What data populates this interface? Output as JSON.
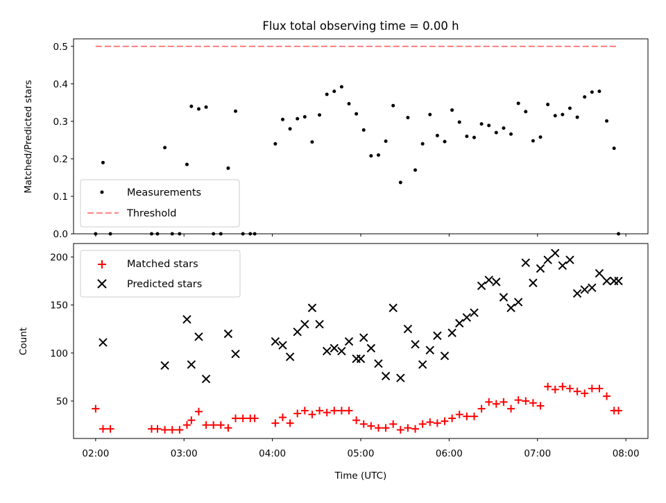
{
  "title": "Flux total observing time = 0.00 h",
  "chart_data": [
    {
      "type": "scatter",
      "ylabel": "Matched/Predicted stars",
      "ylim": [
        0,
        0.52
      ],
      "yticks": [
        "0.0",
        "0.1",
        "0.2",
        "0.3",
        "0.4",
        "0.5"
      ],
      "threshold": 0.5,
      "legend": {
        "position": "lower-left",
        "entries": [
          "Measurements",
          "Threshold"
        ]
      },
      "series": [
        {
          "name": "Measurements",
          "color": "#000000",
          "marker": "dot",
          "x": [
            "02:00",
            "02:05",
            "02:10",
            "02:38",
            "02:42",
            "02:47",
            "02:52",
            "02:57",
            "03:02",
            "03:05",
            "03:10",
            "03:15",
            "03:20",
            "03:25",
            "03:30",
            "03:35",
            "03:40",
            "03:45",
            "03:48",
            "04:02",
            "04:07",
            "04:12",
            "04:17",
            "04:22",
            "04:27",
            "04:32",
            "04:37",
            "04:42",
            "04:47",
            "04:52",
            "04:57",
            "05:02",
            "05:07",
            "05:12",
            "05:17",
            "05:22",
            "05:27",
            "05:32",
            "05:37",
            "05:42",
            "05:47",
            "05:52",
            "05:57",
            "06:02",
            "06:07",
            "06:12",
            "06:17",
            "06:22",
            "06:27",
            "06:32",
            "06:37",
            "06:42",
            "06:47",
            "06:52",
            "06:57",
            "07:02",
            "07:07",
            "07:12",
            "07:17",
            "07:22",
            "07:27",
            "07:32",
            "07:37",
            "07:42",
            "07:47",
            "07:52",
            "07:55"
          ],
          "y": [
            0.0,
            0.19,
            0.0,
            0.0,
            0.0,
            0.23,
            0.0,
            0.0,
            0.185,
            0.34,
            0.333,
            0.338,
            0.0,
            0.0,
            0.175,
            0.327,
            0.0,
            0.0,
            0.0,
            0.24,
            0.305,
            0.28,
            0.307,
            0.312,
            0.245,
            0.317,
            0.372,
            0.38,
            0.392,
            0.347,
            0.32,
            0.277,
            0.208,
            0.21,
            0.247,
            0.342,
            0.137,
            0.31,
            0.17,
            0.24,
            0.318,
            0.262,
            0.246,
            0.33,
            0.298,
            0.26,
            0.257,
            0.293,
            0.289,
            0.27,
            0.282,
            0.266,
            0.348,
            0.326,
            0.248,
            0.258,
            0.345,
            0.315,
            0.318,
            0.335,
            0.311,
            0.365,
            0.378,
            0.38,
            0.301,
            0.228,
            0.0
          ]
        }
      ]
    },
    {
      "type": "scatter",
      "xlabel": "Time (UTC)",
      "ylabel": "Count",
      "ylim": [
        11,
        214
      ],
      "xlim": [
        "01:45",
        "08:15"
      ],
      "yticks": [
        "50",
        "100",
        "150",
        "200"
      ],
      "xticks": [
        "02:00",
        "03:00",
        "04:00",
        "05:00",
        "06:00",
        "07:00",
        "08:00"
      ],
      "legend": {
        "position": "upper-left",
        "entries": [
          "Matched stars",
          "Predicted stars"
        ]
      },
      "series": [
        {
          "name": "Matched stars",
          "color": "#ff0000",
          "marker": "plus",
          "x": [
            "02:00",
            "02:05",
            "02:10",
            "02:38",
            "02:42",
            "02:47",
            "02:52",
            "02:57",
            "03:02",
            "03:05",
            "03:10",
            "03:15",
            "03:20",
            "03:25",
            "03:30",
            "03:35",
            "03:40",
            "03:45",
            "03:48",
            "04:02",
            "04:07",
            "04:12",
            "04:17",
            "04:22",
            "04:27",
            "04:32",
            "04:37",
            "04:42",
            "04:47",
            "04:52",
            "04:57",
            "05:02",
            "05:07",
            "05:12",
            "05:17",
            "05:22",
            "05:27",
            "05:32",
            "05:37",
            "05:42",
            "05:47",
            "05:52",
            "05:57",
            "06:02",
            "06:07",
            "06:12",
            "06:17",
            "06:22",
            "06:27",
            "06:32",
            "06:37",
            "06:42",
            "06:47",
            "06:52",
            "06:57",
            "07:02",
            "07:07",
            "07:12",
            "07:17",
            "07:22",
            "07:27",
            "07:32",
            "07:37",
            "07:42",
            "07:47",
            "07:52",
            "07:55"
          ],
          "y": [
            42,
            21,
            21,
            21,
            21,
            20,
            20,
            20,
            25,
            30,
            39,
            25,
            25,
            25,
            22,
            32,
            32,
            32,
            32,
            27,
            33,
            27,
            37,
            40,
            36,
            40,
            38,
            40,
            40,
            40,
            30,
            26,
            24,
            22,
            22,
            26,
            20,
            22,
            21,
            26,
            28,
            27,
            29,
            32,
            36,
            34,
            34,
            42,
            49,
            47,
            49,
            42,
            51,
            50,
            48,
            45,
            65,
            62,
            65,
            63,
            60,
            58,
            63,
            63,
            55,
            40,
            40
          ]
        },
        {
          "name": "Predicted stars",
          "color": "#000000",
          "marker": "x",
          "x": [
            "02:05",
            "02:47",
            "03:02",
            "03:05",
            "03:10",
            "03:15",
            "03:30",
            "03:35",
            "04:02",
            "04:07",
            "04:12",
            "04:17",
            "04:22",
            "04:27",
            "04:32",
            "04:37",
            "04:42",
            "04:47",
            "04:52",
            "04:57",
            "05:00",
            "05:02",
            "05:07",
            "05:12",
            "05:17",
            "05:22",
            "05:27",
            "05:32",
            "05:37",
            "05:42",
            "05:47",
            "05:52",
            "05:57",
            "06:02",
            "06:07",
            "06:12",
            "06:17",
            "06:22",
            "06:27",
            "06:32",
            "06:37",
            "06:42",
            "06:47",
            "06:52",
            "06:57",
            "07:02",
            "07:07",
            "07:12",
            "07:17",
            "07:22",
            "07:27",
            "07:32",
            "07:37",
            "07:42",
            "07:47",
            "07:52",
            "07:55"
          ],
          "y": [
            111,
            87,
            135,
            88,
            117,
            73,
            120,
            99,
            112,
            108,
            96,
            122,
            130,
            147,
            130,
            102,
            105,
            102,
            112,
            94,
            94,
            116,
            105,
            89,
            76,
            147,
            74,
            125,
            109,
            88,
            103,
            118,
            97,
            121,
            131,
            137,
            142,
            170,
            176,
            174,
            158,
            147,
            153,
            194,
            173,
            188,
            197,
            204,
            191,
            197,
            162,
            166,
            168,
            183,
            175,
            175,
            175
          ]
        }
      ]
    }
  ]
}
